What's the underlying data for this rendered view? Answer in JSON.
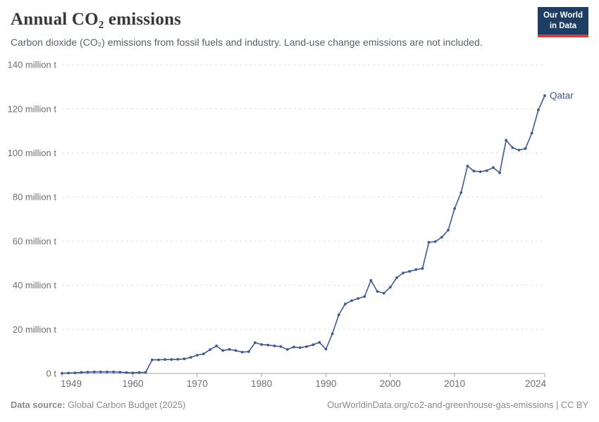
{
  "header": {
    "title": "Annual CO₂ emissions",
    "subtitle": "Carbon dioxide (CO₂) emissions from fossil fuels and industry. Land-use change emissions are not included.",
    "logo": {
      "line1": "Our World",
      "line2": "in Data",
      "bg_color": "#1d3d63",
      "accent_color": "#d93b3b"
    }
  },
  "chart_data": {
    "type": "line",
    "title": "Annual CO₂ emissions",
    "entity_label": "Qatar",
    "unit": "million tonnes CO₂",
    "line_color": "#3c5a96",
    "grid": "horizontal-dashed",
    "legend_position": "end-of-line",
    "xlim": [
      1949,
      2024
    ],
    "ylim": [
      0,
      140
    ],
    "x_ticks": [
      1949,
      1960,
      1970,
      1980,
      1990,
      2000,
      2010,
      2024
    ],
    "y_ticks": [
      {
        "value": 0,
        "label": "0 t"
      },
      {
        "value": 20,
        "label": "20 million t"
      },
      {
        "value": 40,
        "label": "40 million t"
      },
      {
        "value": 60,
        "label": "60 million t"
      },
      {
        "value": 80,
        "label": "80 million t"
      },
      {
        "value": 100,
        "label": "100 million t"
      },
      {
        "value": 120,
        "label": "120 million t"
      },
      {
        "value": 140,
        "label": "140 million t"
      }
    ],
    "x": [
      1949,
      1950,
      1951,
      1952,
      1953,
      1954,
      1955,
      1956,
      1957,
      1958,
      1959,
      1960,
      1961,
      1962,
      1963,
      1964,
      1965,
      1966,
      1967,
      1968,
      1969,
      1970,
      1971,
      1972,
      1973,
      1974,
      1975,
      1976,
      1977,
      1978,
      1979,
      1980,
      1981,
      1982,
      1983,
      1984,
      1985,
      1986,
      1987,
      1988,
      1989,
      1990,
      1991,
      1992,
      1993,
      1994,
      1995,
      1996,
      1997,
      1998,
      1999,
      2000,
      2001,
      2002,
      2003,
      2004,
      2005,
      2006,
      2007,
      2008,
      2009,
      2010,
      2011,
      2012,
      2013,
      2014,
      2015,
      2016,
      2017,
      2018,
      2019,
      2020,
      2021,
      2022,
      2023,
      2024
    ],
    "values": [
      0.1,
      0.2,
      0.3,
      0.5,
      0.6,
      0.7,
      0.7,
      0.7,
      0.7,
      0.6,
      0.4,
      0.3,
      0.4,
      0.5,
      6.2,
      6.2,
      6.3,
      6.3,
      6.4,
      6.6,
      7.3,
      8.3,
      8.9,
      10.8,
      12.5,
      10.4,
      10.9,
      10.4,
      9.7,
      9.9,
      14.0,
      13.1,
      12.9,
      12.5,
      12.2,
      10.9,
      12.0,
      11.7,
      12.2,
      13.0,
      14.1,
      11.0,
      18.0,
      26.6,
      31.5,
      33.0,
      34.0,
      34.9,
      42.2,
      37.2,
      36.4,
      39.1,
      43.4,
      45.6,
      46.3,
      47.1,
      47.6,
      59.5,
      59.8,
      61.8,
      65.0,
      74.8,
      82.0,
      94.1,
      91.8,
      91.5,
      92.0,
      93.4,
      91.0,
      105.8,
      102.4,
      101.3,
      102.0,
      109.0,
      119.5,
      126.0
    ]
  },
  "style": {
    "gridline_color": "#e0e0e0",
    "axis_color": "#a1a1a1",
    "tick_label_color": "#6e6e6e"
  },
  "footer": {
    "datasource_label": "Data source:",
    "datasource_value": " Global Carbon Budget (2025)",
    "link_text": "OurWorldinData.org/co2-and-greenhouse-gas-emissions | CC BY"
  }
}
